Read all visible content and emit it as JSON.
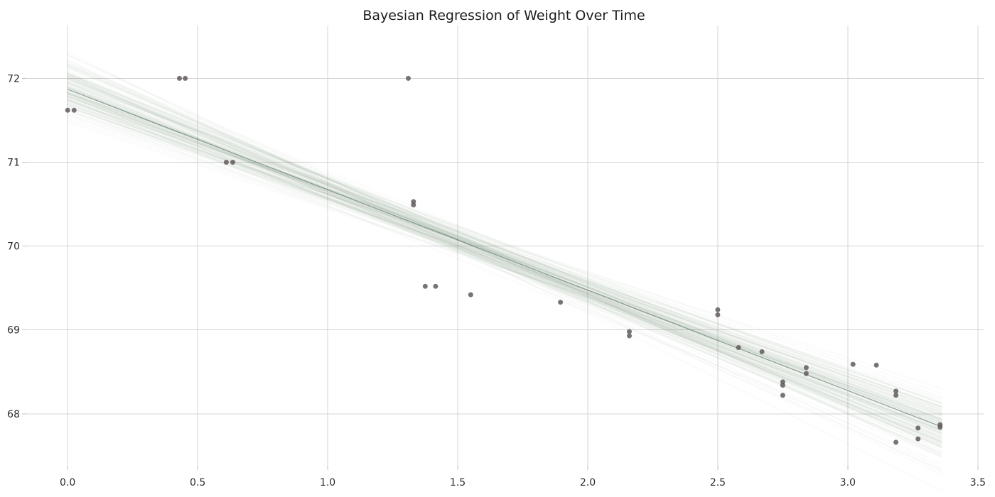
{
  "chart_data": {
    "type": "scatter",
    "title": "Bayesian Regression of Weight Over Time",
    "xlabel": "",
    "ylabel": "",
    "grid": true,
    "legend": "none",
    "xlim": [
      -0.159,
      3.525
    ],
    "ylim": [
      67.38,
      72.63
    ],
    "x_ticks": [
      0.0,
      0.5,
      1.0,
      1.5,
      2.0,
      2.5,
      3.0,
      3.5
    ],
    "x_tick_labels": [
      "0.0",
      "0.5",
      "1.0",
      "1.5",
      "2.0",
      "2.5",
      "3.0",
      "3.5"
    ],
    "y_ticks": [
      68,
      69,
      70,
      71,
      72
    ],
    "y_tick_labels": [
      "68",
      "69",
      "70",
      "71",
      "72"
    ],
    "grid_color": "#d4d4d4",
    "tick_color": "#c2c2c2",
    "point_color": "#615a5e",
    "point_opacity": 0.85,
    "point_radius": 3.5,
    "points": [
      [
        0.0,
        71.62
      ],
      [
        0.025,
        71.62
      ],
      [
        0.43,
        72.0
      ],
      [
        0.452,
        72.0
      ],
      [
        0.61,
        71.0
      ],
      [
        0.635,
        71.0
      ],
      [
        1.31,
        72.0
      ],
      [
        1.33,
        70.53
      ],
      [
        1.33,
        70.49
      ],
      [
        1.375,
        69.52
      ],
      [
        1.415,
        69.52
      ],
      [
        1.55,
        69.42
      ],
      [
        1.895,
        69.33
      ],
      [
        2.16,
        68.98
      ],
      [
        2.16,
        68.93
      ],
      [
        2.5,
        69.24
      ],
      [
        2.5,
        69.18
      ],
      [
        2.58,
        68.79
      ],
      [
        2.67,
        68.74
      ],
      [
        2.75,
        68.38
      ],
      [
        2.75,
        68.34
      ],
      [
        2.75,
        68.22
      ],
      [
        2.84,
        68.55
      ],
      [
        2.84,
        68.48
      ],
      [
        3.02,
        68.59
      ],
      [
        3.11,
        68.58
      ],
      [
        3.185,
        68.27
      ],
      [
        3.185,
        68.22
      ],
      [
        3.185,
        67.66
      ],
      [
        3.27,
        67.83
      ],
      [
        3.27,
        67.7
      ],
      [
        3.355,
        67.87
      ],
      [
        3.355,
        67.84
      ]
    ],
    "regression": {
      "type": "bayesian-posterior-lines",
      "x_range": [
        0.0,
        3.36
      ],
      "intercept_mean": 71.87,
      "slope_mean": -1.198,
      "intercept_sd": 0.17,
      "slope_sd": 0.105,
      "correlation": -0.88,
      "n_lines": 130,
      "line_color": "#557a6a",
      "line_opacity": 0.032,
      "line_width": 2,
      "mean_line_color": "#3f6254",
      "mean_line_opacity": 0.55,
      "mean_line_width": 1.2
    }
  }
}
